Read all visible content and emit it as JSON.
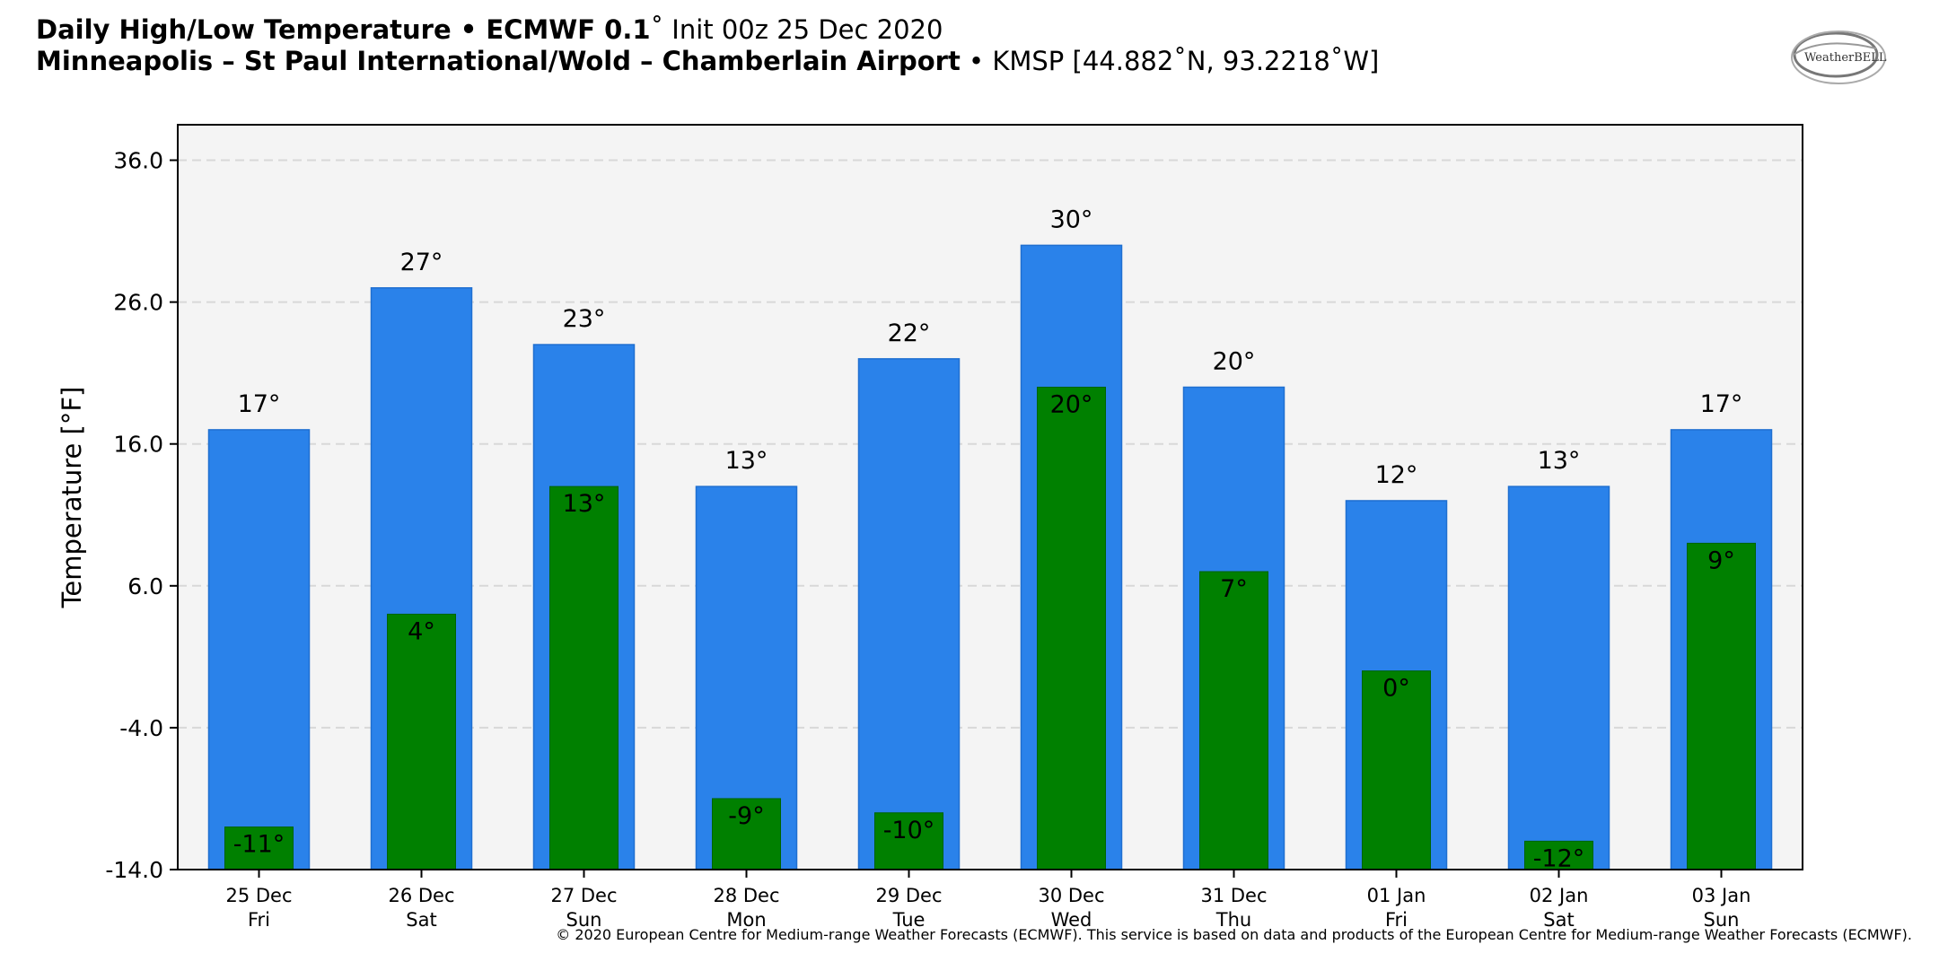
{
  "header": {
    "title_bold": "Daily High/Low Temperature • ECMWF 0.1",
    "title_deg": "˚",
    "title_rest": " Init 00z 25 Dec 2020",
    "location_bold": "Minneapolis – St Paul International/Wold – Chamberlain Airport",
    "location_rest": " • KMSP [44.882˚N, 93.2218˚W]"
  },
  "logo": {
    "text": "WeatherBELL",
    "icon": "weatherbell-logo"
  },
  "copyright": "© 2020 European Centre for Medium-range Weather Forecasts (ECMWF). This service is based on data and products of the European Centre for Medium-range Weather Forecasts (ECMWF).",
  "colors": {
    "high": "#2a82ea",
    "low": "#008000",
    "plot_bg": "#f4f4f4",
    "grid": "#d8d8d8"
  },
  "chart_data": {
    "type": "bar",
    "ylabel": "Temperature [°F]",
    "ylim": [
      -14,
      38.5
    ],
    "yticks": [
      "36.0",
      "26.0",
      "16.0",
      "6.0",
      "-4.0",
      "-14.0"
    ],
    "ytick_values": [
      36,
      26,
      16,
      6,
      -4,
      -14
    ],
    "grid": true,
    "categories": [
      [
        "25 Dec",
        "Fri"
      ],
      [
        "26 Dec",
        "Sat"
      ],
      [
        "27 Dec",
        "Sun"
      ],
      [
        "28 Dec",
        "Mon"
      ],
      [
        "29 Dec",
        "Tue"
      ],
      [
        "30 Dec",
        "Wed"
      ],
      [
        "31 Dec",
        "Thu"
      ],
      [
        "01 Jan",
        "Fri"
      ],
      [
        "02 Jan",
        "Sat"
      ],
      [
        "03 Jan",
        "Sun"
      ]
    ],
    "series": [
      {
        "key": "high",
        "values": [
          17,
          27,
          23,
          13,
          22,
          30,
          20,
          12,
          13,
          17
        ],
        "labels": [
          "17°",
          "27°",
          "23°",
          "13°",
          "22°",
          "30°",
          "20°",
          "12°",
          "13°",
          "17°"
        ]
      },
      {
        "key": "low",
        "values": [
          -11,
          4,
          13,
          -9,
          -10,
          20,
          7,
          0,
          -12,
          9
        ],
        "labels": [
          "-11°",
          "4°",
          "13°",
          "-9°",
          "-10°",
          "20°",
          "7°",
          "0°",
          "-12°",
          "9°"
        ]
      }
    ]
  }
}
